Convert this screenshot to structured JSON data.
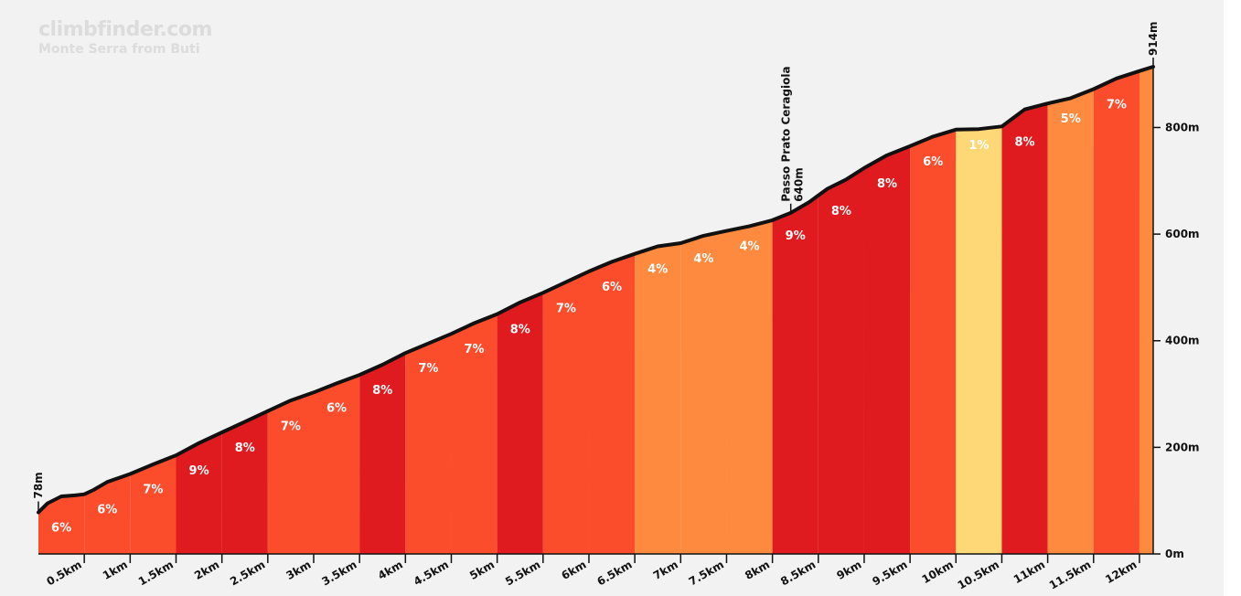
{
  "brand": "climbfinder.com",
  "subtitle": "Monte Serra from Buti",
  "chart_data": {
    "type": "area",
    "title": "Monte Serra from Buti",
    "xlabel": "",
    "ylabel": "",
    "xlim": [
      0,
      12.15
    ],
    "ylim": [
      0,
      914
    ],
    "x_ticks": [
      "0.5km",
      "1km",
      "1.5km",
      "2km",
      "2.5km",
      "3km",
      "3.5km",
      "4km",
      "4.5km",
      "5km",
      "5.5km",
      "6km",
      "6.5km",
      "7km",
      "7.5km",
      "8km",
      "8.5km",
      "9km",
      "9.5km",
      "10km",
      "10.5km",
      "11km",
      "11.5km",
      "12km"
    ],
    "y_ticks": [
      "0m",
      "200m",
      "400m",
      "600m",
      "800m"
    ],
    "y_tick_values": [
      0,
      200,
      400,
      600,
      800
    ],
    "segments": [
      {
        "start": 0.0,
        "end": 0.5,
        "gradient": "6%",
        "color": "#fb4c2c"
      },
      {
        "start": 0.5,
        "end": 1.0,
        "gradient": "6%",
        "color": "#fb4c2c"
      },
      {
        "start": 1.0,
        "end": 1.5,
        "gradient": "7%",
        "color": "#fb4c2c"
      },
      {
        "start": 1.5,
        "end": 2.0,
        "gradient": "9%",
        "color": "#e01b1f"
      },
      {
        "start": 2.0,
        "end": 2.5,
        "gradient": "8%",
        "color": "#e01b1f"
      },
      {
        "start": 2.5,
        "end": 3.0,
        "gradient": "7%",
        "color": "#fb4c2c"
      },
      {
        "start": 3.0,
        "end": 3.5,
        "gradient": "6%",
        "color": "#fb4c2c"
      },
      {
        "start": 3.5,
        "end": 4.0,
        "gradient": "8%",
        "color": "#e01b1f"
      },
      {
        "start": 4.0,
        "end": 4.5,
        "gradient": "7%",
        "color": "#fb4c2c"
      },
      {
        "start": 4.5,
        "end": 5.0,
        "gradient": "7%",
        "color": "#fb4c2c"
      },
      {
        "start": 5.0,
        "end": 5.5,
        "gradient": "8%",
        "color": "#e01b1f"
      },
      {
        "start": 5.5,
        "end": 6.0,
        "gradient": "7%",
        "color": "#fb4c2c"
      },
      {
        "start": 6.0,
        "end": 6.5,
        "gradient": "6%",
        "color": "#fb4c2c"
      },
      {
        "start": 6.5,
        "end": 7.0,
        "gradient": "4%",
        "color": "#fd8a3e"
      },
      {
        "start": 7.0,
        "end": 7.5,
        "gradient": "4%",
        "color": "#fd8a3e"
      },
      {
        "start": 7.5,
        "end": 8.0,
        "gradient": "4%",
        "color": "#fd8a3e"
      },
      {
        "start": 8.0,
        "end": 8.5,
        "gradient": "9%",
        "color": "#e01b1f"
      },
      {
        "start": 8.5,
        "end": 9.0,
        "gradient": "8%",
        "color": "#e01b1f"
      },
      {
        "start": 9.0,
        "end": 9.5,
        "gradient": "8%",
        "color": "#e01b1f"
      },
      {
        "start": 9.5,
        "end": 10.0,
        "gradient": "6%",
        "color": "#fb4c2c"
      },
      {
        "start": 10.0,
        "end": 10.5,
        "gradient": "1%",
        "color": "#fed776"
      },
      {
        "start": 10.5,
        "end": 11.0,
        "gradient": "8%",
        "color": "#e01b1f"
      },
      {
        "start": 11.0,
        "end": 11.5,
        "gradient": "5%",
        "color": "#fd8a3e"
      },
      {
        "start": 11.5,
        "end": 12.0,
        "gradient": "7%",
        "color": "#fb4c2c"
      },
      {
        "start": 12.0,
        "end": 12.15,
        "gradient": "",
        "color": "#fd8a3e"
      }
    ],
    "profile": [
      [
        0.0,
        78
      ],
      [
        0.1,
        95
      ],
      [
        0.25,
        108
      ],
      [
        0.4,
        110
      ],
      [
        0.5,
        112
      ],
      [
        0.6,
        120
      ],
      [
        0.75,
        135
      ],
      [
        1.0,
        150
      ],
      [
        1.25,
        168
      ],
      [
        1.5,
        185
      ],
      [
        1.75,
        208
      ],
      [
        2.0,
        228
      ],
      [
        2.25,
        248
      ],
      [
        2.5,
        268
      ],
      [
        2.75,
        288
      ],
      [
        3.0,
        303
      ],
      [
        3.25,
        320
      ],
      [
        3.5,
        336
      ],
      [
        3.75,
        355
      ],
      [
        4.0,
        377
      ],
      [
        4.25,
        395
      ],
      [
        4.5,
        413
      ],
      [
        4.75,
        433
      ],
      [
        5.0,
        450
      ],
      [
        5.25,
        472
      ],
      [
        5.5,
        490
      ],
      [
        5.75,
        510
      ],
      [
        6.0,
        530
      ],
      [
        6.25,
        548
      ],
      [
        6.5,
        563
      ],
      [
        6.75,
        577
      ],
      [
        7.0,
        583
      ],
      [
        7.25,
        597
      ],
      [
        7.5,
        606
      ],
      [
        7.75,
        615
      ],
      [
        8.0,
        626
      ],
      [
        8.2,
        640
      ],
      [
        8.4,
        660
      ],
      [
        8.6,
        685
      ],
      [
        8.8,
        702
      ],
      [
        9.0,
        724
      ],
      [
        9.25,
        748
      ],
      [
        9.5,
        765
      ],
      [
        9.75,
        783
      ],
      [
        10.0,
        796
      ],
      [
        10.25,
        797
      ],
      [
        10.5,
        802
      ],
      [
        10.75,
        834
      ],
      [
        11.0,
        845
      ],
      [
        11.25,
        855
      ],
      [
        11.5,
        872
      ],
      [
        11.75,
        892
      ],
      [
        12.0,
        906
      ],
      [
        12.15,
        914
      ]
    ],
    "annotations": [
      {
        "x": 0.0,
        "elevation": 78,
        "label": "78m"
      },
      {
        "x": 8.2,
        "elevation": 640,
        "label": "Passo Prato Ceragiola",
        "sublabel": "640m"
      },
      {
        "x": 12.15,
        "elevation": 914,
        "label": "914m"
      }
    ]
  }
}
